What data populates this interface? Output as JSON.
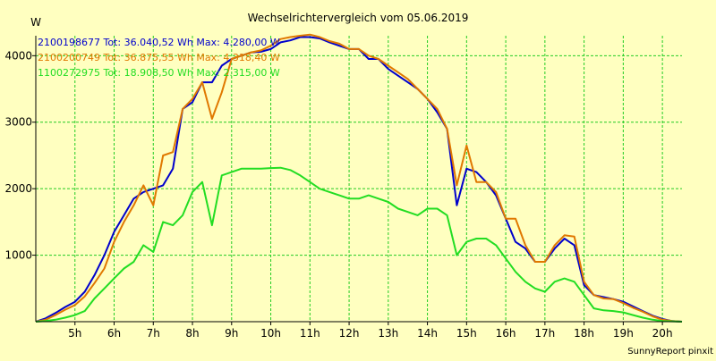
{
  "chart_data": {
    "type": "line",
    "title": "Wechselrichtervergleich vom 05.06.2019",
    "ylabel": "W",
    "footer": "SunnyReport pinxit",
    "ylim": [
      0,
      4300
    ],
    "xlim": [
      4.0,
      20.5
    ],
    "yticks": [
      1000,
      2000,
      3000,
      4000
    ],
    "xticks": [
      5,
      6,
      7,
      8,
      9,
      10,
      11,
      12,
      13,
      14,
      15,
      16,
      17,
      18,
      19,
      20
    ],
    "xtick_labels": [
      "5h",
      "6h",
      "7h",
      "8h",
      "9h",
      "10h",
      "11h",
      "12h",
      "13h",
      "14h",
      "15h",
      "16h",
      "17h",
      "18h",
      "19h",
      "20h"
    ],
    "grid": true,
    "legend_position": "top-left",
    "colors": {
      "background": "#ffffc0",
      "grid": "#22cc22",
      "axis": "#000000"
    },
    "series": [
      {
        "name": "2100198677 Tot: 36.040,52 Wh Max: 4.280,00 W",
        "color": "#0000cc",
        "x": [
          4.0,
          4.25,
          4.5,
          4.75,
          5.0,
          5.25,
          5.5,
          5.75,
          6.0,
          6.25,
          6.5,
          6.75,
          7.0,
          7.25,
          7.5,
          7.75,
          8.0,
          8.25,
          8.5,
          8.75,
          9.0,
          9.25,
          9.5,
          9.75,
          10.0,
          10.25,
          10.5,
          10.75,
          11.0,
          11.25,
          11.5,
          11.75,
          12.0,
          12.25,
          12.5,
          12.75,
          13.0,
          13.25,
          13.5,
          13.75,
          14.0,
          14.25,
          14.5,
          14.75,
          15.0,
          15.25,
          15.5,
          15.75,
          16.0,
          16.25,
          16.5,
          16.75,
          17.0,
          17.25,
          17.5,
          17.75,
          18.0,
          18.25,
          18.5,
          18.75,
          19.0,
          19.25,
          19.5,
          19.75,
          20.0,
          20.25,
          20.5
        ],
        "y": [
          0,
          50,
          130,
          220,
          300,
          450,
          700,
          1000,
          1350,
          1600,
          1850,
          1950,
          2000,
          2050,
          2300,
          3200,
          3300,
          3600,
          3600,
          3850,
          3950,
          4000,
          4050,
          4060,
          4100,
          4200,
          4230,
          4280,
          4280,
          4260,
          4200,
          4150,
          4100,
          4100,
          3950,
          3950,
          3800,
          3700,
          3600,
          3500,
          3350,
          3150,
          2900,
          1750,
          2300,
          2250,
          2100,
          1900,
          1550,
          1200,
          1100,
          900,
          900,
          1100,
          1250,
          1150,
          550,
          400,
          370,
          340,
          300,
          230,
          160,
          90,
          40,
          10,
          0
        ]
      },
      {
        "name": "2100200749 Tot: 36.875,55 Wh Max: 4.318,40 W",
        "color": "#e07800",
        "x": [
          4.0,
          4.25,
          4.5,
          4.75,
          5.0,
          5.25,
          5.5,
          5.75,
          6.0,
          6.25,
          6.5,
          6.75,
          7.0,
          7.25,
          7.5,
          7.75,
          8.0,
          8.25,
          8.5,
          8.75,
          9.0,
          9.25,
          9.5,
          9.75,
          10.0,
          10.25,
          10.5,
          10.75,
          11.0,
          11.25,
          11.5,
          11.75,
          12.0,
          12.25,
          12.5,
          12.75,
          13.0,
          13.25,
          13.5,
          13.75,
          14.0,
          14.25,
          14.5,
          14.75,
          15.0,
          15.25,
          15.5,
          15.75,
          16.0,
          16.25,
          16.5,
          16.75,
          17.0,
          17.25,
          17.5,
          17.75,
          18.0,
          18.25,
          18.5,
          18.75,
          19.0,
          19.25,
          19.5,
          19.75,
          20.0,
          20.25,
          20.5
        ],
        "y": [
          0,
          30,
          100,
          180,
          250,
          380,
          580,
          800,
          1200,
          1500,
          1750,
          2050,
          1750,
          2500,
          2550,
          3200,
          3350,
          3600,
          3050,
          3450,
          3950,
          4000,
          4050,
          4080,
          4150,
          4250,
          4280,
          4300,
          4318,
          4280,
          4220,
          4180,
          4100,
          4100,
          4000,
          3950,
          3850,
          3750,
          3650,
          3500,
          3350,
          3200,
          2900,
          2050,
          2650,
          2100,
          2100,
          1950,
          1550,
          1550,
          1150,
          900,
          900,
          1150,
          1300,
          1280,
          600,
          400,
          350,
          340,
          280,
          210,
          150,
          80,
          30,
          10,
          0
        ]
      },
      {
        "name": "1100272975 Tot: 18.908,50 Wh Max: 2.315,00 W",
        "color": "#22dd22",
        "x": [
          4.0,
          4.25,
          4.5,
          4.75,
          5.0,
          5.25,
          5.5,
          5.75,
          6.0,
          6.25,
          6.5,
          6.75,
          7.0,
          7.25,
          7.5,
          7.75,
          8.0,
          8.25,
          8.5,
          8.75,
          9.0,
          9.25,
          9.5,
          9.75,
          10.0,
          10.25,
          10.5,
          10.75,
          11.0,
          11.25,
          11.5,
          11.75,
          12.0,
          12.25,
          12.5,
          12.75,
          13.0,
          13.25,
          13.5,
          13.75,
          14.0,
          14.25,
          14.5,
          14.75,
          15.0,
          15.25,
          15.5,
          15.75,
          16.0,
          16.25,
          16.5,
          16.75,
          17.0,
          17.25,
          17.5,
          17.75,
          18.0,
          18.25,
          18.5,
          18.75,
          19.0,
          19.25,
          19.5,
          19.75,
          20.0,
          20.25,
          20.5
        ],
        "y": [
          0,
          10,
          30,
          60,
          100,
          160,
          350,
          500,
          650,
          800,
          900,
          1150,
          1050,
          1500,
          1450,
          1600,
          1950,
          2100,
          1450,
          2200,
          2250,
          2300,
          2300,
          2300,
          2310,
          2315,
          2280,
          2200,
          2100,
          2000,
          1950,
          1900,
          1850,
          1850,
          1900,
          1850,
          1800,
          1700,
          1650,
          1600,
          1700,
          1700,
          1600,
          1000,
          1200,
          1250,
          1250,
          1150,
          950,
          750,
          600,
          500,
          450,
          600,
          650,
          600,
          400,
          200,
          170,
          160,
          140,
          100,
          60,
          30,
          10,
          5,
          0
        ]
      }
    ]
  }
}
